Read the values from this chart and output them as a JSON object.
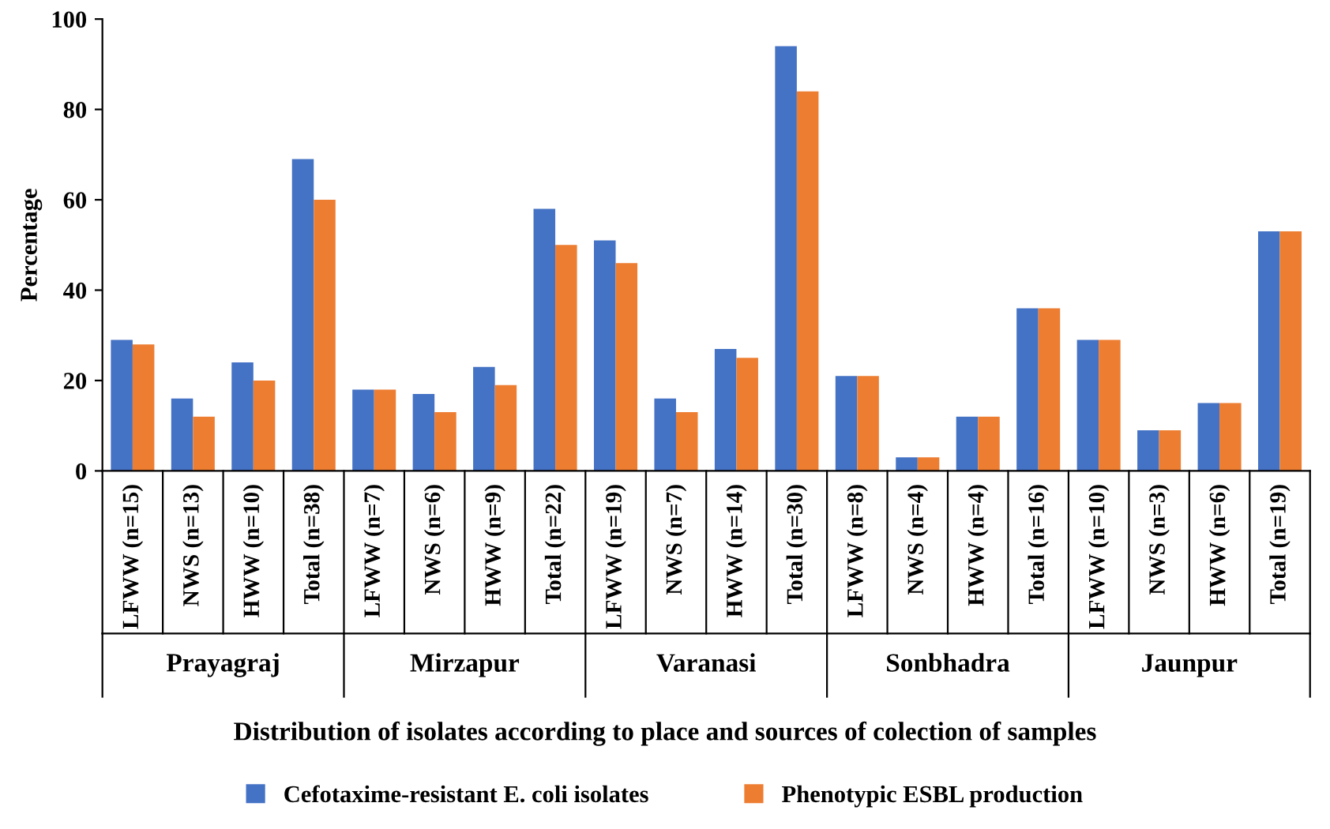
{
  "chart_data": {
    "type": "bar",
    "ylabel": "Percentage",
    "xlabel": "Distribution of isolates according to place and sources of colection of samples",
    "categories": [
      "LFWW (n=15)",
      "NWS (n=13)",
      "HWW (n=10)",
      "Total (n=38)",
      "LFWW (n=7)",
      "NWS (n=6)",
      "HWW (n=9)",
      "Total (n=22)",
      "LFWW (n=19)",
      "NWS (n=7)",
      "HWW (n=14)",
      "Total (n=30)",
      "LFWW (n=8)",
      "NWS (n=4)",
      "HWW (n=4)",
      "Total (n=16)",
      "LFWW (n=10)",
      "NWS (n=3)",
      "HWW (n=6)",
      "Total (n=19)"
    ],
    "series": [
      {
        "name": "Cefotaxime-resistant E. coli isolates",
        "color": "#4472c4",
        "values": [
          29,
          16,
          24,
          69,
          18,
          17,
          23,
          58,
          51,
          16,
          27,
          94,
          21,
          3,
          12,
          36,
          29,
          9,
          15,
          53
        ]
      },
      {
        "name": "Phenotypic ESBL production",
        "color": "#ed7d31",
        "values": [
          28,
          12,
          20,
          60,
          18,
          13,
          19,
          50,
          46,
          13,
          25,
          84,
          21,
          3,
          12,
          36,
          29,
          9,
          15,
          53
        ]
      }
    ],
    "annotations": [
      "Prayagraj",
      "Mirzapur",
      "Varanasi",
      "Sonbhadra",
      "Jaunpur"
    ],
    "ylim": [
      0,
      100
    ],
    "yticks": [
      0,
      20,
      40,
      60,
      80,
      100
    ],
    "grid": false,
    "legend": "bottom"
  }
}
